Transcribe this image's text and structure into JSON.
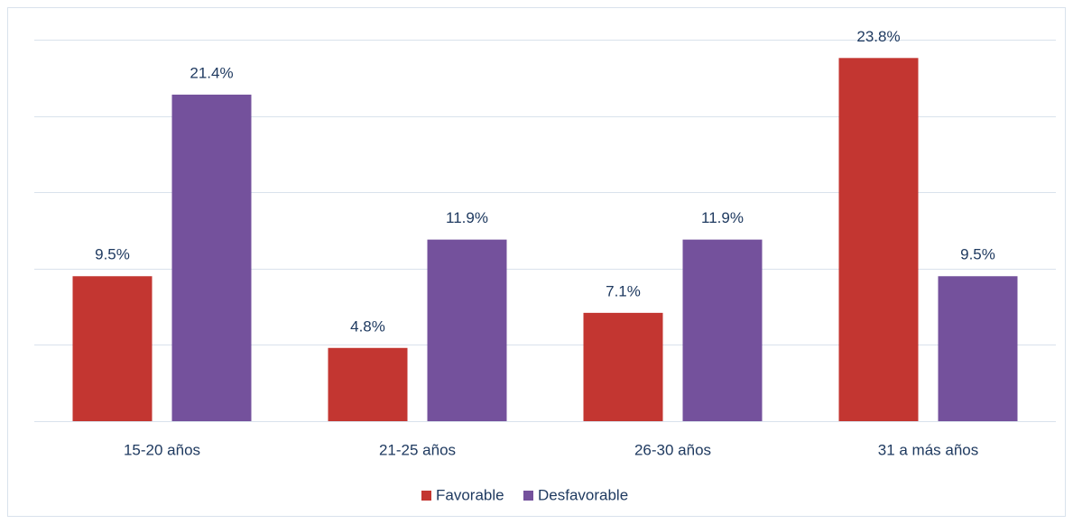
{
  "chart_data": {
    "type": "bar",
    "categories": [
      "15-20 años",
      "21-25 años",
      "26-30 años",
      "31 a más años"
    ],
    "series": [
      {
        "name": "Favorable",
        "color": "#c33631",
        "values": [
          9.5,
          4.8,
          7.1,
          23.8
        ],
        "value_labels": [
          "9.5%",
          "4.8%",
          "7.1%",
          "23.8%"
        ]
      },
      {
        "name": "Desfavorable",
        "color": "#74519c",
        "values": [
          21.4,
          11.9,
          11.9,
          9.5
        ],
        "value_labels": [
          "21.4%",
          "11.9%",
          "11.9%",
          "9.5%"
        ]
      }
    ],
    "ylim": [
      0,
      25
    ],
    "yticks": [
      0,
      5,
      10,
      15,
      20,
      25
    ],
    "grid": true,
    "legend": "bottom"
  }
}
